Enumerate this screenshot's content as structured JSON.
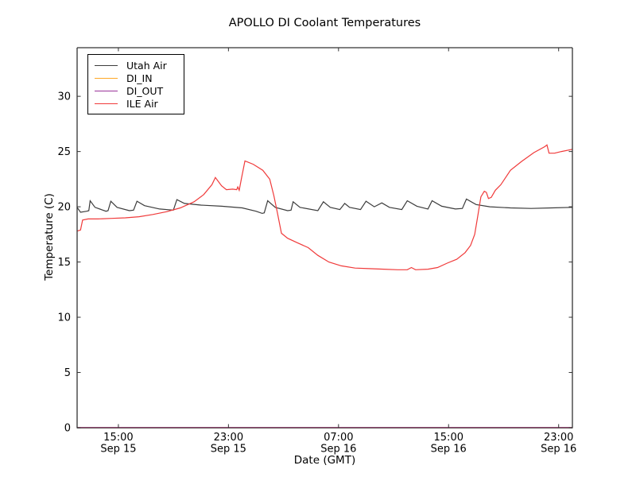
{
  "chart_data": {
    "type": "line",
    "title": "APOLLO DI Coolant Temperatures",
    "xlabel": "Date (GMT)",
    "ylabel": "Temperature (C)",
    "grid": false,
    "legend_position": "upper left",
    "x_axis": {
      "unit": "hours after Sep 15 12:00 GMT",
      "range": [
        0,
        36
      ],
      "ticks": [
        {
          "pos": 3,
          "time": "15:00",
          "date": "Sep 15"
        },
        {
          "pos": 11,
          "time": "23:00",
          "date": "Sep 15"
        },
        {
          "pos": 19,
          "time": "07:00",
          "date": "Sep 16"
        },
        {
          "pos": 27,
          "time": "15:00",
          "date": "Sep 16"
        },
        {
          "pos": 35,
          "time": "23:00",
          "date": "Sep 16"
        }
      ]
    },
    "y_axis": {
      "range": [
        0,
        34.4
      ],
      "ticks": [
        0,
        5,
        10,
        15,
        20,
        25,
        30
      ]
    },
    "series": [
      {
        "name": "Utah Air",
        "color": "#3c3c3c",
        "points": [
          [
            0,
            19.95
          ],
          [
            0.25,
            19.5
          ],
          [
            0.7,
            19.6
          ],
          [
            0.85,
            19.65
          ],
          [
            0.95,
            20.55
          ],
          [
            1.3,
            19.95
          ],
          [
            2.1,
            19.6
          ],
          [
            2.25,
            19.65
          ],
          [
            2.45,
            20.5
          ],
          [
            2.9,
            19.95
          ],
          [
            3.8,
            19.65
          ],
          [
            4.1,
            19.7
          ],
          [
            4.35,
            20.5
          ],
          [
            4.9,
            20.1
          ],
          [
            6.0,
            19.8
          ],
          [
            7.0,
            19.7
          ],
          [
            7.25,
            20.65
          ],
          [
            7.8,
            20.3
          ],
          [
            9.0,
            20.15
          ],
          [
            10.5,
            20.05
          ],
          [
            12.0,
            19.9
          ],
          [
            13.0,
            19.6
          ],
          [
            13.45,
            19.4
          ],
          [
            13.6,
            19.45
          ],
          [
            13.85,
            20.55
          ],
          [
            14.4,
            19.95
          ],
          [
            15.3,
            19.65
          ],
          [
            15.55,
            19.7
          ],
          [
            15.7,
            20.45
          ],
          [
            16.2,
            19.95
          ],
          [
            17.5,
            19.65
          ],
          [
            17.9,
            20.45
          ],
          [
            18.4,
            19.95
          ],
          [
            19.1,
            19.75
          ],
          [
            19.45,
            20.3
          ],
          [
            19.8,
            19.95
          ],
          [
            20.6,
            19.75
          ],
          [
            21.0,
            20.5
          ],
          [
            21.6,
            20.0
          ],
          [
            22.15,
            20.35
          ],
          [
            22.7,
            19.95
          ],
          [
            23.6,
            19.75
          ],
          [
            24.0,
            20.55
          ],
          [
            24.7,
            20.05
          ],
          [
            25.5,
            19.8
          ],
          [
            25.8,
            20.55
          ],
          [
            26.5,
            20.05
          ],
          [
            27.5,
            19.8
          ],
          [
            28.0,
            19.85
          ],
          [
            28.3,
            20.7
          ],
          [
            29.0,
            20.2
          ],
          [
            30.0,
            20.0
          ],
          [
            31.5,
            19.9
          ],
          [
            33.0,
            19.85
          ],
          [
            34.5,
            19.9
          ],
          [
            36,
            19.95
          ]
        ]
      },
      {
        "name": "DI_IN",
        "color": "#ffa726",
        "points": [
          [
            0,
            0
          ],
          [
            36,
            0
          ]
        ]
      },
      {
        "name": "DI_OUT",
        "color": "#993399",
        "points": [
          [
            0,
            0
          ],
          [
            36,
            0
          ]
        ]
      },
      {
        "name": "ILE Air",
        "color": "#f03a3a",
        "points": [
          [
            0,
            17.8
          ],
          [
            0.25,
            17.9
          ],
          [
            0.4,
            18.8
          ],
          [
            0.8,
            18.9
          ],
          [
            1.5,
            18.9
          ],
          [
            2.5,
            18.95
          ],
          [
            3.5,
            19.0
          ],
          [
            4.5,
            19.1
          ],
          [
            5.5,
            19.3
          ],
          [
            6.5,
            19.55
          ],
          [
            7.5,
            19.9
          ],
          [
            8.5,
            20.45
          ],
          [
            9.2,
            21.1
          ],
          [
            9.8,
            22.0
          ],
          [
            10.05,
            22.65
          ],
          [
            10.5,
            21.9
          ],
          [
            10.85,
            21.55
          ],
          [
            11.3,
            21.6
          ],
          [
            11.6,
            21.55
          ],
          [
            11.68,
            21.8
          ],
          [
            11.78,
            21.5
          ],
          [
            11.95,
            22.6
          ],
          [
            12.2,
            24.15
          ],
          [
            12.8,
            23.85
          ],
          [
            13.5,
            23.3
          ],
          [
            14.0,
            22.5
          ],
          [
            14.3,
            21.0
          ],
          [
            14.55,
            19.5
          ],
          [
            14.85,
            17.6
          ],
          [
            15.3,
            17.15
          ],
          [
            16.0,
            16.75
          ],
          [
            16.8,
            16.3
          ],
          [
            17.5,
            15.6
          ],
          [
            18.3,
            15.0
          ],
          [
            19.2,
            14.65
          ],
          [
            20.2,
            14.45
          ],
          [
            21.2,
            14.4
          ],
          [
            22.3,
            14.35
          ],
          [
            23.3,
            14.3
          ],
          [
            24.0,
            14.3
          ],
          [
            24.3,
            14.5
          ],
          [
            24.6,
            14.3
          ],
          [
            25.5,
            14.35
          ],
          [
            26.2,
            14.5
          ],
          [
            26.9,
            14.9
          ],
          [
            27.6,
            15.25
          ],
          [
            28.2,
            15.85
          ],
          [
            28.6,
            16.5
          ],
          [
            28.9,
            17.5
          ],
          [
            29.1,
            19.0
          ],
          [
            29.35,
            20.9
          ],
          [
            29.6,
            21.4
          ],
          [
            29.75,
            21.3
          ],
          [
            29.9,
            20.75
          ],
          [
            30.1,
            20.85
          ],
          [
            30.4,
            21.5
          ],
          [
            30.8,
            22.0
          ],
          [
            31.5,
            23.3
          ],
          [
            32.3,
            24.1
          ],
          [
            33.2,
            24.9
          ],
          [
            34.0,
            25.45
          ],
          [
            34.15,
            25.6
          ],
          [
            34.3,
            24.85
          ],
          [
            34.7,
            24.85
          ],
          [
            35.2,
            25.0
          ],
          [
            36,
            25.2
          ]
        ]
      }
    ]
  }
}
